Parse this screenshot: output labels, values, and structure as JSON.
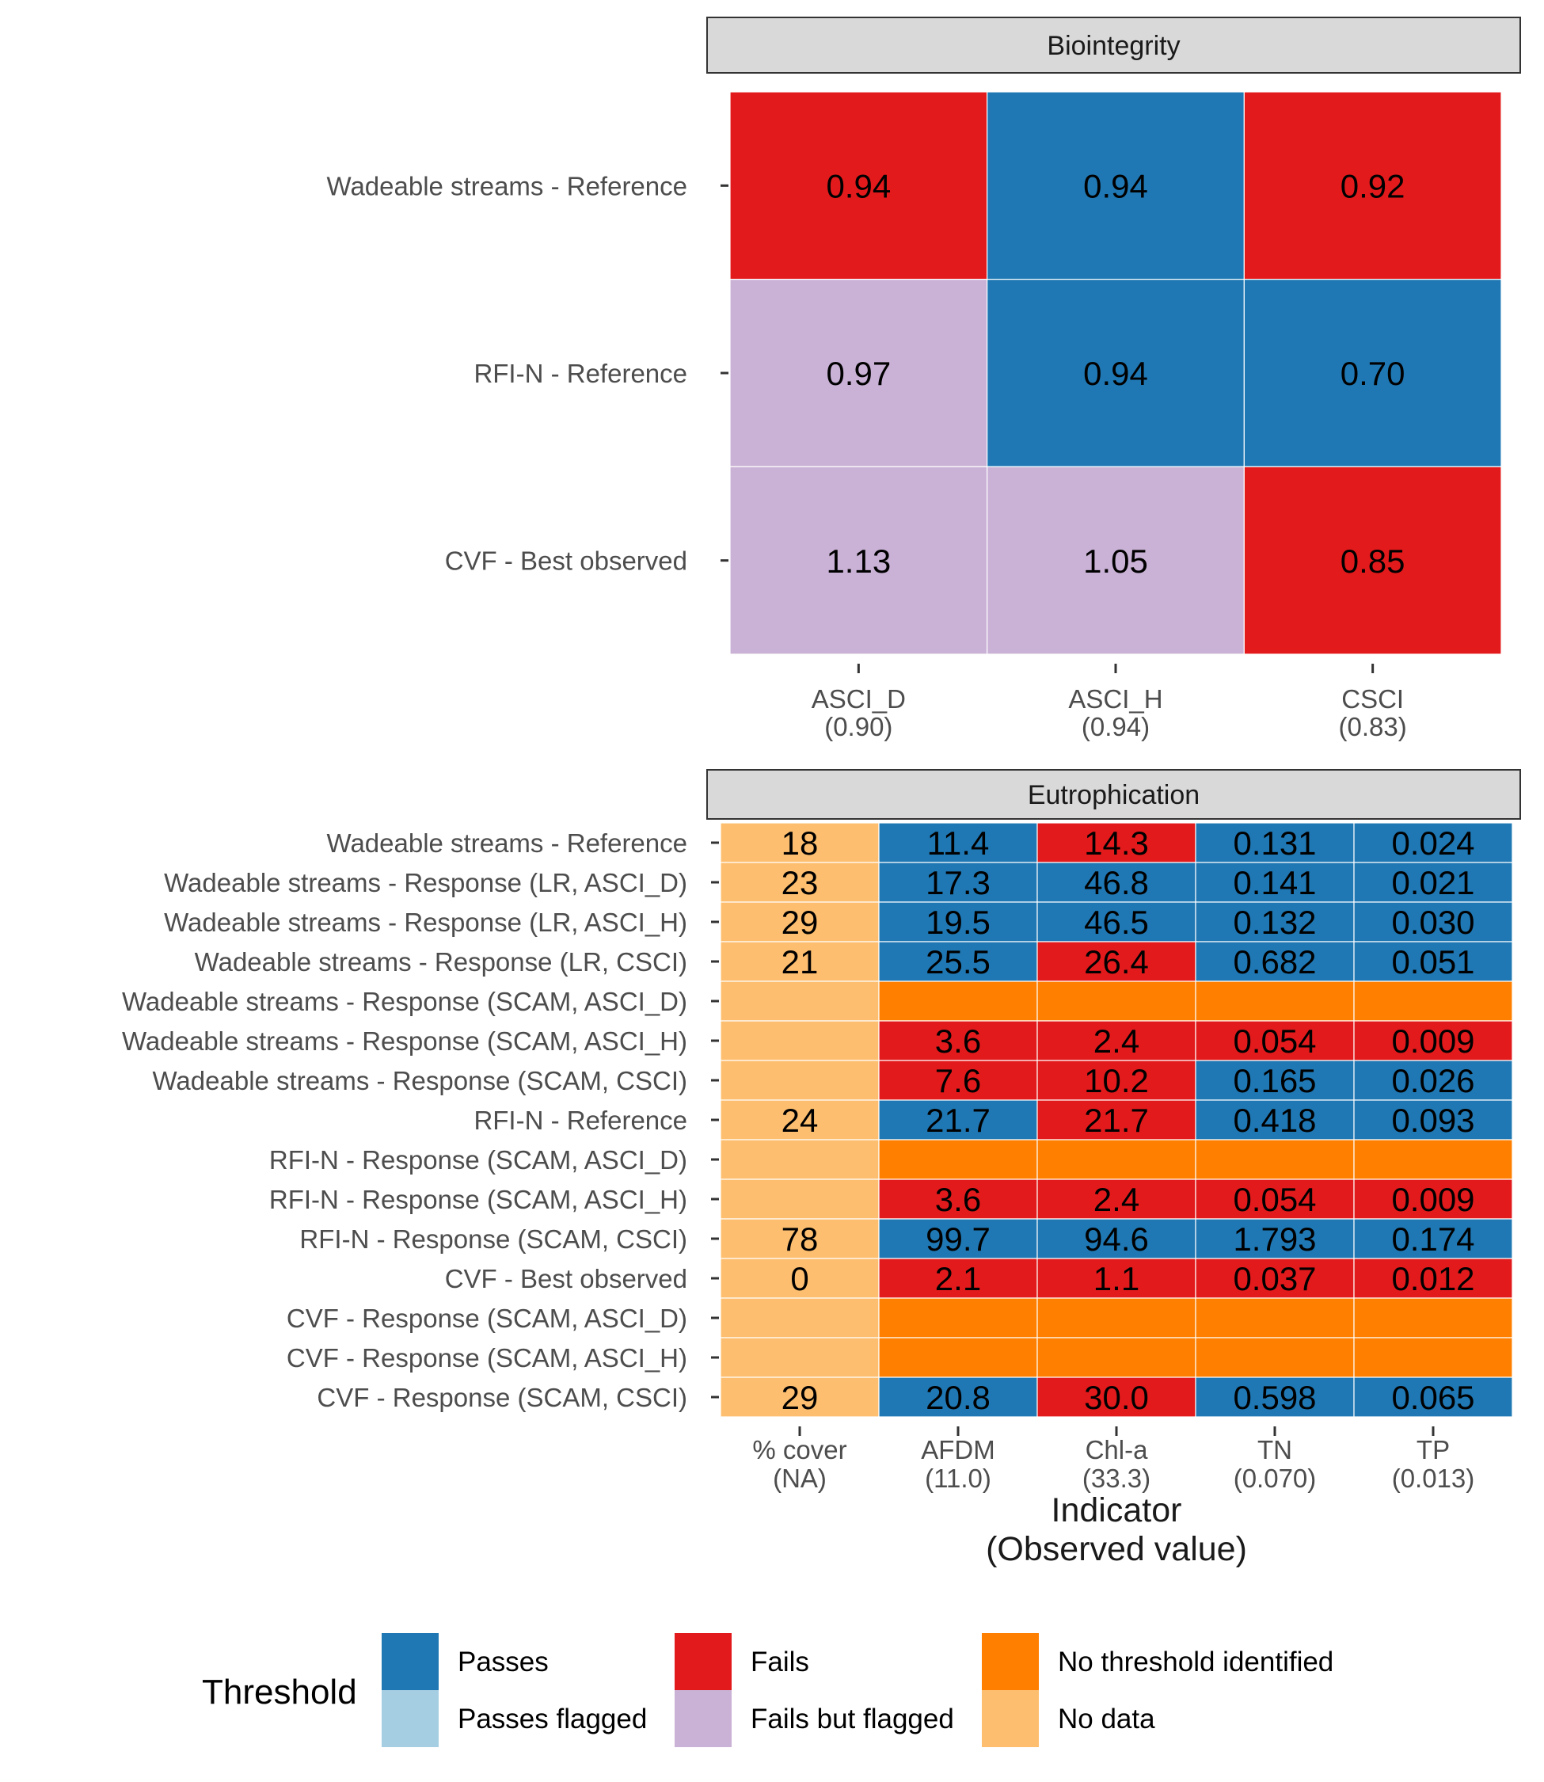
{
  "chart_data": [
    {
      "type": "heatmap",
      "title": "Biointegrity",
      "rows": [
        "Wadeable streams - Reference",
        "RFI-N - Reference",
        "CVF - Best observed"
      ],
      "columns": [
        {
          "name": "ASCI_D",
          "threshold": "(0.90)"
        },
        {
          "name": "ASCI_H",
          "threshold": "(0.94)"
        },
        {
          "name": "CSCI",
          "threshold": "(0.83)"
        }
      ],
      "values": [
        [
          "0.94",
          "0.94",
          "0.92"
        ],
        [
          "0.97",
          "0.94",
          "0.70"
        ],
        [
          "1.13",
          "1.05",
          "0.85"
        ]
      ],
      "status": [
        [
          "Fails",
          "Passes",
          "Fails"
        ],
        [
          "Fails but flagged",
          "Passes",
          "Passes"
        ],
        [
          "Fails but flagged",
          "Fails but flagged",
          "Fails"
        ]
      ]
    },
    {
      "type": "heatmap",
      "title": "Eutrophication",
      "rows": [
        "Wadeable streams - Reference",
        "Wadeable streams - Response (LR, ASCI_D)",
        "Wadeable streams - Response (LR, ASCI_H)",
        "Wadeable streams - Response (LR, CSCI)",
        "Wadeable streams - Response (SCAM, ASCI_D)",
        "Wadeable streams - Response (SCAM, ASCI_H)",
        "Wadeable streams - Response (SCAM, CSCI)",
        "RFI-N - Reference",
        "RFI-N - Response (SCAM, ASCI_D)",
        "RFI-N - Response (SCAM, ASCI_H)",
        "RFI-N - Response (SCAM, CSCI)",
        "CVF - Best observed",
        "CVF - Response (SCAM, ASCI_D)",
        "CVF - Response (SCAM, ASCI_H)",
        "CVF - Response (SCAM, CSCI)"
      ],
      "columns": [
        {
          "name": "% cover",
          "threshold": "(NA)"
        },
        {
          "name": "AFDM",
          "threshold": "(11.0)"
        },
        {
          "name": "Chl-a",
          "threshold": "(33.3)"
        },
        {
          "name": "TN",
          "threshold": "(0.070)"
        },
        {
          "name": "TP",
          "threshold": "(0.013)"
        }
      ],
      "values": [
        [
          "18",
          "11.4",
          "14.3",
          "0.131",
          "0.024"
        ],
        [
          "23",
          "17.3",
          "46.8",
          "0.141",
          "0.021"
        ],
        [
          "29",
          "19.5",
          "46.5",
          "0.132",
          "0.030"
        ],
        [
          "21",
          "25.5",
          "26.4",
          "0.682",
          "0.051"
        ],
        [
          "",
          "",
          "",
          "",
          ""
        ],
        [
          "",
          "3.6",
          "2.4",
          "0.054",
          "0.009"
        ],
        [
          "",
          "7.6",
          "10.2",
          "0.165",
          "0.026"
        ],
        [
          "24",
          "21.7",
          "21.7",
          "0.418",
          "0.093"
        ],
        [
          "",
          "",
          "",
          "",
          ""
        ],
        [
          "",
          "3.6",
          "2.4",
          "0.054",
          "0.009"
        ],
        [
          "78",
          "99.7",
          "94.6",
          "1.793",
          "0.174"
        ],
        [
          "0",
          "2.1",
          "1.1",
          "0.037",
          "0.012"
        ],
        [
          "",
          "",
          "",
          "",
          ""
        ],
        [
          "",
          "",
          "",
          "",
          ""
        ],
        [
          "29",
          "20.8",
          "30.0",
          "0.598",
          "0.065"
        ]
      ],
      "status": [
        [
          "No data",
          "Passes",
          "Fails",
          "Passes",
          "Passes"
        ],
        [
          "No data",
          "Passes",
          "Passes",
          "Passes",
          "Passes"
        ],
        [
          "No data",
          "Passes",
          "Passes",
          "Passes",
          "Passes"
        ],
        [
          "No data",
          "Passes",
          "Fails",
          "Passes",
          "Passes"
        ],
        [
          "No data",
          "No threshold identified",
          "No threshold identified",
          "No threshold identified",
          "No threshold identified"
        ],
        [
          "No data",
          "Fails",
          "Fails",
          "Fails",
          "Fails"
        ],
        [
          "No data",
          "Fails",
          "Fails",
          "Passes",
          "Passes"
        ],
        [
          "No data",
          "Passes",
          "Fails",
          "Passes",
          "Passes"
        ],
        [
          "No data",
          "No threshold identified",
          "No threshold identified",
          "No threshold identified",
          "No threshold identified"
        ],
        [
          "No data",
          "Fails",
          "Fails",
          "Fails",
          "Fails"
        ],
        [
          "No data",
          "Passes",
          "Passes",
          "Passes",
          "Passes"
        ],
        [
          "No data",
          "Fails",
          "Fails",
          "Fails",
          "Fails"
        ],
        [
          "No data",
          "No threshold identified",
          "No threshold identified",
          "No threshold identified",
          "No threshold identified"
        ],
        [
          "No data",
          "No threshold identified",
          "No threshold identified",
          "No threshold identified",
          "No threshold identified"
        ],
        [
          "No data",
          "Passes",
          "Fails",
          "Passes",
          "Passes"
        ]
      ]
    }
  ],
  "axis_title_line1": "Indicator",
  "axis_title_line2": "(Observed value)",
  "legend": {
    "title": "Threshold",
    "position": "bottom",
    "items": [
      {
        "label": "Passes",
        "color": "#1f78b4"
      },
      {
        "label": "Passes flagged",
        "color": "#a6cee3"
      },
      {
        "label": "Fails",
        "color": "#e31a1c"
      },
      {
        "label": "Fails but flagged",
        "color": "#cab2d6"
      },
      {
        "label": "No threshold identified",
        "color": "#ff7f00"
      },
      {
        "label": "No data",
        "color": "#fdbf6f"
      }
    ]
  }
}
